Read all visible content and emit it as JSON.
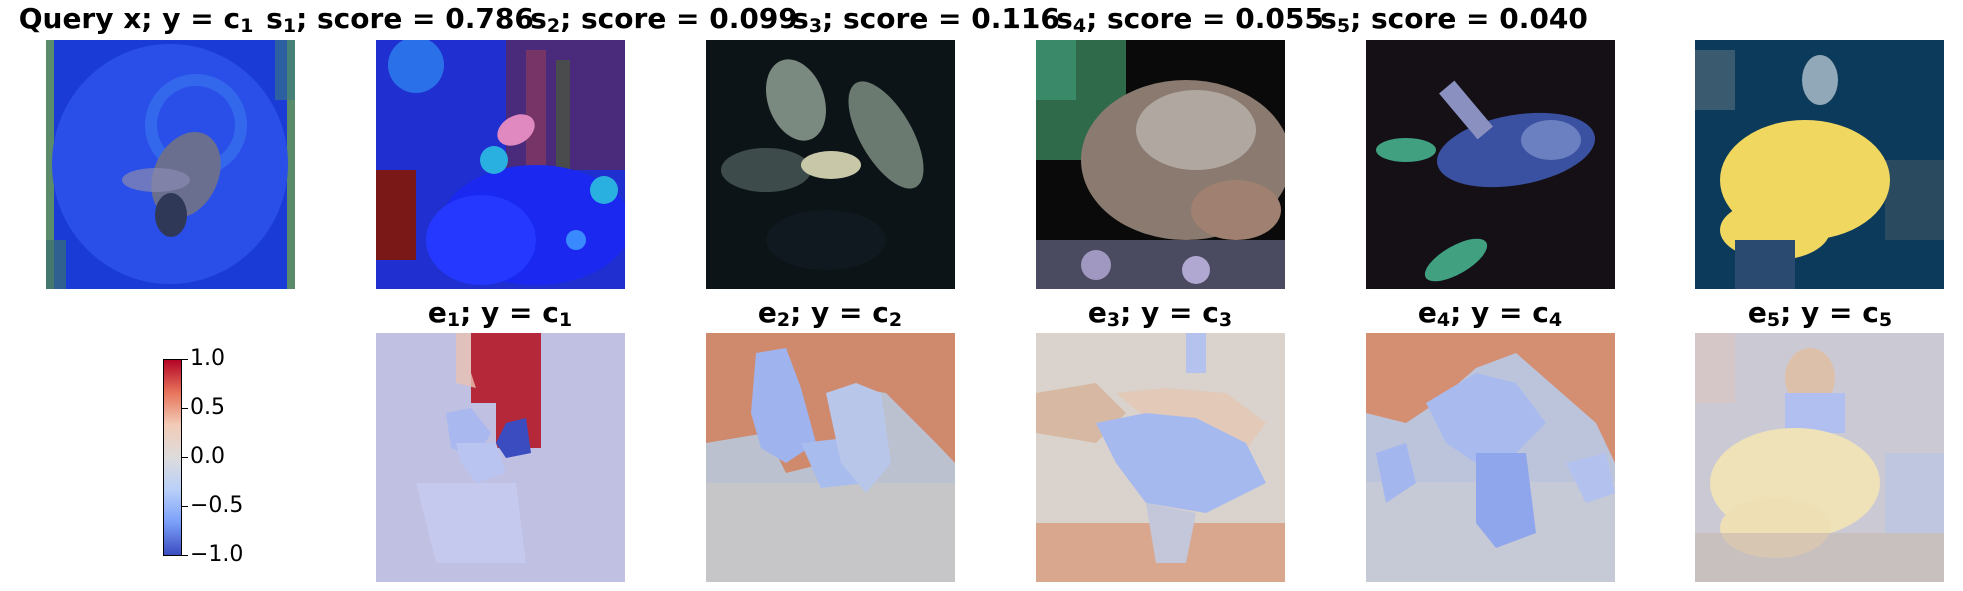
{
  "top_titles": [
    {
      "main": "Query x; y = c",
      "sub": "1",
      "suffix": ""
    },
    {
      "main": "s",
      "sub": "1",
      "suffix": "; score = 0.786"
    },
    {
      "main": "s",
      "sub": "2",
      "suffix": "; score = 0.099"
    },
    {
      "main": "s",
      "sub": "3",
      "suffix": "; score = 0.116"
    },
    {
      "main": "s",
      "sub": "4",
      "suffix": "; score = 0.055"
    },
    {
      "main": "s",
      "sub": "5",
      "suffix": "; score = 0.040"
    }
  ],
  "bottom_titles": [
    {
      "e": "e",
      "esub": "1",
      "mid": "; y = c",
      "csub": "1"
    },
    {
      "e": "e",
      "esub": "2",
      "mid": "; y = c",
      "csub": "2"
    },
    {
      "e": "e",
      "esub": "3",
      "mid": "; y = c",
      "csub": "3"
    },
    {
      "e": "e",
      "esub": "4",
      "mid": "; y = c",
      "csub": "4"
    },
    {
      "e": "e",
      "esub": "5",
      "mid": "; y = c",
      "csub": "5"
    }
  ],
  "colorbar": {
    "colormap": "coolwarm",
    "ticks": [
      "1.0",
      "0.5",
      "0.0",
      "−0.5",
      "−1.0"
    ],
    "colors": {
      "max": "#b40426",
      "mid": "#dddcdc",
      "min": "#3b4cc0"
    }
  },
  "images": [
    {
      "name": "query-image",
      "colors": [
        "#1a3bd6",
        "#2a4fe8",
        "#5a8b6a",
        "#6b6f8f"
      ]
    },
    {
      "name": "support-image-1",
      "colors": [
        "#1f2fd0",
        "#6a3070",
        "#2ab0e0",
        "#e088c0"
      ]
    },
    {
      "name": "support-image-2",
      "colors": [
        "#0c1418",
        "#7a8a80",
        "#c8c8a8"
      ]
    },
    {
      "name": "support-image-3",
      "colors": [
        "#0a0a0a",
        "#2f6a4a",
        "#8a7a70",
        "#a08070"
      ]
    },
    {
      "name": "support-image-4",
      "colors": [
        "#141016",
        "#3a50a0",
        "#6a80c0",
        "#40a080"
      ]
    },
    {
      "name": "support-image-5",
      "colors": [
        "#0c3a5a",
        "#f0d860",
        "#3a5a70",
        "#90a8b8"
      ]
    }
  ]
}
